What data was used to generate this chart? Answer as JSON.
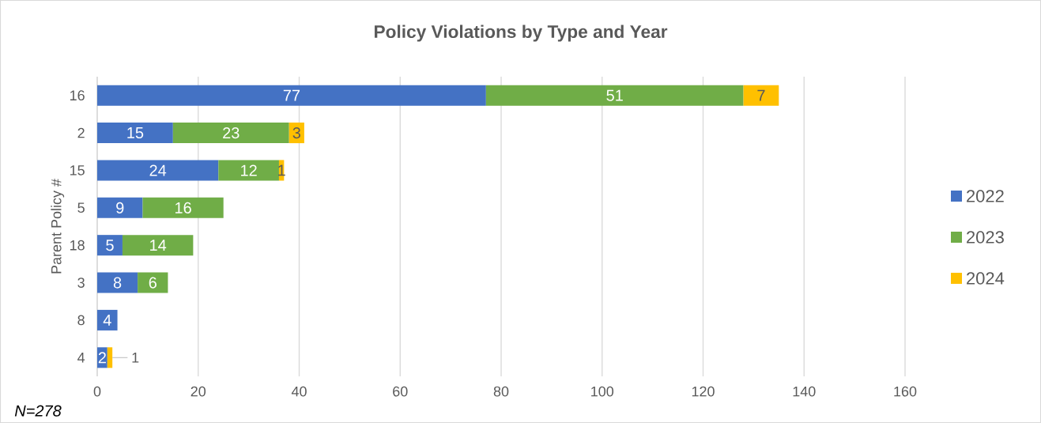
{
  "chart_data": {
    "type": "bar",
    "orientation": "horizontal",
    "stacked": true,
    "title": "Policy Violations by Type and Year",
    "ylabel": "Parent Policy #",
    "categories": [
      "16",
      "2",
      "15",
      "5",
      "18",
      "3",
      "8",
      "4"
    ],
    "series": [
      {
        "name": "2022",
        "color": "#4472c4",
        "values": [
          77,
          15,
          24,
          9,
          5,
          8,
          4,
          2
        ]
      },
      {
        "name": "2023",
        "color": "#70ad47",
        "values": [
          51,
          23,
          12,
          16,
          14,
          6,
          null,
          null
        ]
      },
      {
        "name": "2024",
        "color": "#ffc000",
        "values": [
          7,
          3,
          1,
          null,
          null,
          null,
          null,
          1
        ]
      }
    ],
    "xlim": [
      0,
      160
    ],
    "xticks": [
      0,
      20,
      40,
      60,
      80,
      100,
      120,
      140,
      160
    ],
    "grid": "x",
    "legend": "right",
    "data_labels": true,
    "annotations": [
      "N=278"
    ]
  }
}
